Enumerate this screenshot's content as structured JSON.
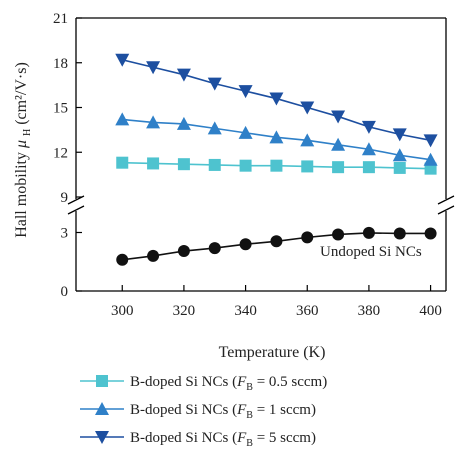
{
  "chart_data": {
    "type": "line",
    "xlabel": "Temperature (K)",
    "ylabel": "Hall mobility μ_H (cm²/V·s)",
    "x_ticks": [
      300,
      320,
      340,
      360,
      380,
      400
    ],
    "xlim": [
      285,
      405
    ],
    "y_upper": {
      "ticks": [
        9,
        12,
        15,
        18,
        21
      ],
      "lim": [
        9,
        21
      ]
    },
    "y_lower": {
      "ticks": [
        0,
        3
      ],
      "lim": [
        0,
        4
      ]
    },
    "axis_break": true,
    "annotation": "Undoped Si NCs",
    "x": [
      300,
      310,
      320,
      330,
      340,
      350,
      360,
      370,
      380,
      390,
      400
    ],
    "series": [
      {
        "name": "B-doped Si NCs (F_B = 0.5 sccm)",
        "name_prefix": "B-doped Si NCs (",
        "name_var": "F",
        "name_sub": "B",
        "name_suffix": " = 0.5 sccm)",
        "marker": "square",
        "color": "#4ec3cf",
        "values": [
          11.3,
          11.25,
          11.2,
          11.15,
          11.1,
          11.1,
          11.05,
          11.0,
          11.0,
          10.95,
          10.9
        ]
      },
      {
        "name": "B-doped Si NCs (F_B = 1 sccm)",
        "name_prefix": "B-doped Si NCs (",
        "name_var": "F",
        "name_sub": "B",
        "name_suffix": " = 1 sccm)",
        "marker": "triangle-up",
        "color": "#2f80c8",
        "values": [
          14.2,
          14.0,
          13.9,
          13.6,
          13.3,
          13.0,
          12.8,
          12.5,
          12.2,
          11.8,
          11.5
        ]
      },
      {
        "name": "B-doped Si NCs (F_B = 5 sccm)",
        "name_prefix": "B-doped Si NCs (",
        "name_var": "F",
        "name_sub": "B",
        "name_suffix": " = 5 sccm)",
        "marker": "triangle-down",
        "color": "#1d4fa0",
        "values": [
          18.2,
          17.7,
          17.2,
          16.6,
          16.1,
          15.6,
          15.0,
          14.4,
          13.7,
          13.2,
          12.8
        ]
      },
      {
        "name": "Undoped Si NCs",
        "marker": "circle",
        "color": "#111111",
        "legend": false,
        "values": [
          1.6,
          1.8,
          2.05,
          2.2,
          2.4,
          2.55,
          2.75,
          2.9,
          2.98,
          2.95,
          2.95
        ]
      }
    ],
    "legend_position": "bottom"
  }
}
